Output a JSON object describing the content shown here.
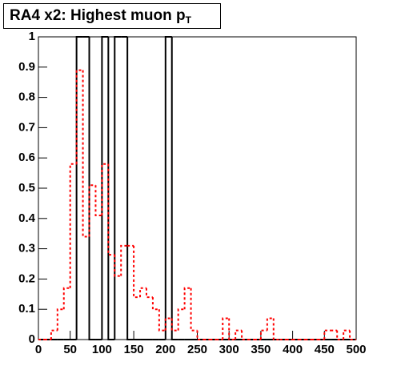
{
  "chart_data": {
    "type": "histogram",
    "title": "RA4 x2: Highest muon p",
    "title_subscript": "T",
    "bins": [
      0,
      10,
      20,
      30,
      40,
      50,
      60,
      70,
      80,
      90,
      100,
      110,
      120,
      130,
      140,
      150,
      160,
      170,
      180,
      190,
      200,
      210,
      220,
      230,
      240,
      250,
      260,
      270,
      280,
      290,
      300,
      310,
      320,
      330,
      340,
      350,
      360,
      370,
      380,
      390,
      400,
      410,
      420,
      430,
      440,
      450,
      460,
      470,
      480,
      490,
      500
    ],
    "series": [
      {
        "color": "#000000",
        "line_style": "solid",
        "values": [
          0,
          0,
          0,
          0,
          0,
          0,
          1,
          1,
          0,
          0,
          1,
          0,
          1,
          1,
          0,
          0,
          0,
          0,
          0,
          0,
          1,
          0,
          0,
          0,
          0,
          0,
          0,
          0,
          0,
          0,
          0,
          0,
          0,
          0,
          0,
          0,
          0,
          0,
          0,
          0,
          0,
          0,
          0,
          0,
          0,
          0,
          0,
          0,
          0,
          0
        ]
      },
      {
        "color": "#ff0000",
        "line_style": "dotted",
        "values": [
          0,
          0,
          0.03,
          0.1,
          0.17,
          0.58,
          0.89,
          0.34,
          0.51,
          0.41,
          0.58,
          0.28,
          0.21,
          0.31,
          0.31,
          0.14,
          0.17,
          0.14,
          0.1,
          0.03,
          0.07,
          0.03,
          0.1,
          0.17,
          0.03,
          0,
          0,
          0,
          0,
          0.07,
          0,
          0.03,
          0,
          0,
          0,
          0.03,
          0.07,
          0,
          0,
          0,
          0,
          0,
          0,
          0,
          0,
          0.03,
          0.03,
          0,
          0.03,
          0
        ]
      }
    ],
    "xlim": [
      0,
      500
    ],
    "xticks": [
      0,
      50,
      100,
      150,
      200,
      250,
      300,
      350,
      400,
      450,
      500
    ],
    "ylim": [
      0,
      1
    ],
    "yticks": [
      0,
      0.1,
      0.2,
      0.3,
      0.4,
      0.5,
      0.6,
      0.7,
      0.8,
      0.9,
      1
    ],
    "grid": false
  }
}
